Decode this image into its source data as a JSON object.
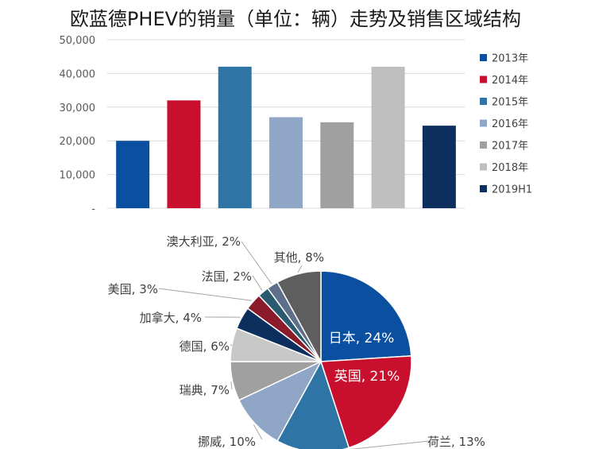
{
  "title": "欧蓝德PHEV的销量（单位：辆）走势及销售区域结构",
  "chart_data": [
    {
      "type": "bar",
      "title": "欧蓝德PHEV的销量（单位：辆）走势及销售区域结构",
      "categories": [
        "2013年",
        "2014年",
        "2015年",
        "2016年",
        "2017年",
        "2018年",
        "2019H1"
      ],
      "values": [
        20000,
        32000,
        42000,
        27000,
        25500,
        42000,
        24500
      ],
      "colors": [
        "#0a4fa0",
        "#c8102e",
        "#2e75a6",
        "#8fa6c6",
        "#a0a0a0",
        "#bfbfbf",
        "#0d2f5e"
      ],
      "ylim": [
        0,
        50000
      ],
      "yticks": [
        "-",
        "10,000",
        "20,000",
        "30,000",
        "40,000",
        "50,000"
      ],
      "grid": true,
      "legend": "right"
    },
    {
      "type": "pie",
      "slices": [
        {
          "label": "日本, 24%",
          "name": "日本",
          "value": 24,
          "color": "#0a4fa0"
        },
        {
          "label": "英国, 21%",
          "name": "英国",
          "value": 21,
          "color": "#c8102e"
        },
        {
          "label": "荷兰, 13%",
          "name": "荷兰",
          "value": 13,
          "color": "#2e75a6"
        },
        {
          "label": "挪威, 10%",
          "name": "挪威",
          "value": 10,
          "color": "#8fa6c6"
        },
        {
          "label": "瑞典, 7%",
          "name": "瑞典",
          "value": 7,
          "color": "#a0a0a0"
        },
        {
          "label": "德国, 6%",
          "name": "德国",
          "value": 6,
          "color": "#c8c8c8"
        },
        {
          "label": "加拿大, 4%",
          "name": "加拿大",
          "value": 4,
          "color": "#0d2f5e"
        },
        {
          "label": "美国, 3%",
          "name": "美国",
          "value": 3,
          "color": "#8b1a2b"
        },
        {
          "label": "法国, 2%",
          "name": "法国",
          "value": 2,
          "color": "#2a5a70"
        },
        {
          "label": "澳大利亚, 2%",
          "name": "澳大利亚",
          "value": 2,
          "color": "#5d6f8a"
        },
        {
          "label": "其他, 8%",
          "name": "其他",
          "value": 8,
          "color": "#5e5e5e"
        }
      ]
    }
  ]
}
